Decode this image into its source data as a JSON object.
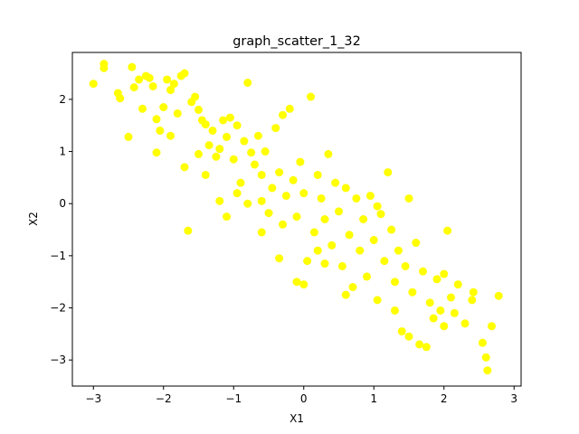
{
  "chart_data": {
    "type": "scatter",
    "title": "graph_scatter_1_32",
    "xlabel": "X1",
    "ylabel": "X2",
    "xlim": [
      -3.3,
      3.1
    ],
    "ylim": [
      -3.5,
      2.9
    ],
    "xticks": [
      -3,
      -2,
      -1,
      0,
      1,
      2,
      3
    ],
    "yticks": [
      -3,
      -2,
      -1,
      0,
      1,
      2
    ],
    "grid": false,
    "legend": "none",
    "marker_color": "#ffff00",
    "series": [
      {
        "points": [
          [
            -3.0,
            2.3
          ],
          [
            -2.85,
            2.6
          ],
          [
            -2.85,
            2.68
          ],
          [
            -2.65,
            2.12
          ],
          [
            -2.62,
            2.02
          ],
          [
            -2.5,
            1.28
          ],
          [
            -2.45,
            2.62
          ],
          [
            -2.42,
            2.23
          ],
          [
            -2.35,
            2.38
          ],
          [
            -2.3,
            1.82
          ],
          [
            -2.25,
            2.45
          ],
          [
            -2.2,
            2.41
          ],
          [
            -2.15,
            2.25
          ],
          [
            -2.1,
            1.62
          ],
          [
            -2.05,
            1.4
          ],
          [
            -2.0,
            1.85
          ],
          [
            -1.95,
            2.38
          ],
          [
            -1.9,
            2.18
          ],
          [
            -1.85,
            2.3
          ],
          [
            -1.8,
            1.73
          ],
          [
            -1.75,
            2.45
          ],
          [
            -1.7,
            2.5
          ],
          [
            -1.65,
            -0.52
          ],
          [
            -1.6,
            1.95
          ],
          [
            -1.55,
            2.05
          ],
          [
            -1.5,
            1.8
          ],
          [
            -1.45,
            1.6
          ],
          [
            -1.4,
            1.52
          ],
          [
            -1.35,
            1.12
          ],
          [
            -1.3,
            1.4
          ],
          [
            -1.25,
            0.9
          ],
          [
            -1.2,
            1.05
          ],
          [
            -1.15,
            1.6
          ],
          [
            -1.1,
            1.28
          ],
          [
            -1.05,
            1.65
          ],
          [
            -1.0,
            0.85
          ],
          [
            -0.95,
            1.5
          ],
          [
            -0.9,
            0.4
          ],
          [
            -0.85,
            1.2
          ],
          [
            -0.8,
            2.32
          ],
          [
            -0.75,
            0.98
          ],
          [
            -0.7,
            0.75
          ],
          [
            -0.65,
            1.3
          ],
          [
            -0.6,
            0.55
          ],
          [
            -0.55,
            1.0
          ],
          [
            -0.5,
            -0.18
          ],
          [
            -0.45,
            0.3
          ],
          [
            -0.4,
            1.45
          ],
          [
            -0.35,
            0.6
          ],
          [
            -0.3,
            1.7
          ],
          [
            -0.25,
            0.15
          ],
          [
            -0.2,
            1.82
          ],
          [
            -0.15,
            0.45
          ],
          [
            -0.1,
            -0.25
          ],
          [
            -0.05,
            0.8
          ],
          [
            0.0,
            0.2
          ],
          [
            0.05,
            -1.1
          ],
          [
            0.1,
            2.05
          ],
          [
            0.15,
            -0.55
          ],
          [
            0.2,
            0.55
          ],
          [
            0.25,
            0.1
          ],
          [
            0.3,
            -0.3
          ],
          [
            0.35,
            0.95
          ],
          [
            0.4,
            -0.8
          ],
          [
            0.45,
            0.4
          ],
          [
            0.5,
            -0.15
          ],
          [
            0.55,
            -1.2
          ],
          [
            0.6,
            0.3
          ],
          [
            0.65,
            -0.6
          ],
          [
            0.7,
            -1.6
          ],
          [
            0.75,
            0.1
          ],
          [
            0.8,
            -0.9
          ],
          [
            0.85,
            -0.3
          ],
          [
            0.9,
            -1.4
          ],
          [
            0.95,
            0.15
          ],
          [
            1.0,
            -0.7
          ],
          [
            1.05,
            -1.85
          ],
          [
            1.1,
            -0.2
          ],
          [
            1.15,
            -1.1
          ],
          [
            1.2,
            0.6
          ],
          [
            1.25,
            -0.5
          ],
          [
            1.3,
            -1.5
          ],
          [
            1.35,
            -0.9
          ],
          [
            1.4,
            -2.45
          ],
          [
            1.45,
            -1.2
          ],
          [
            1.5,
            -2.55
          ],
          [
            1.55,
            -1.7
          ],
          [
            1.6,
            -0.75
          ],
          [
            1.65,
            -2.7
          ],
          [
            1.7,
            -1.3
          ],
          [
            1.75,
            -2.75
          ],
          [
            1.8,
            -1.9
          ],
          [
            1.85,
            -2.2
          ],
          [
            1.9,
            -1.45
          ],
          [
            1.95,
            -2.05
          ],
          [
            2.0,
            -1.35
          ],
          [
            2.05,
            -0.52
          ],
          [
            2.1,
            -1.8
          ],
          [
            2.15,
            -2.1
          ],
          [
            2.2,
            -1.55
          ],
          [
            2.3,
            -2.3
          ],
          [
            2.4,
            -1.85
          ],
          [
            2.42,
            -1.7
          ],
          [
            2.55,
            -2.67
          ],
          [
            2.6,
            -2.95
          ],
          [
            2.62,
            -3.2
          ],
          [
            2.68,
            -2.35
          ],
          [
            2.78,
            -1.77
          ],
          [
            -1.2,
            0.05
          ],
          [
            -1.5,
            0.95
          ],
          [
            -0.95,
            0.2
          ],
          [
            -1.1,
            -0.25
          ],
          [
            -0.6,
            -0.55
          ],
          [
            -0.35,
            -1.05
          ],
          [
            -0.1,
            -1.5
          ],
          [
            0.0,
            -1.55
          ],
          [
            0.3,
            -1.15
          ],
          [
            -2.1,
            0.98
          ],
          [
            -1.7,
            0.7
          ],
          [
            -0.8,
            0.0
          ],
          [
            -0.3,
            -0.4
          ],
          [
            0.6,
            -1.75
          ],
          [
            1.05,
            -0.05
          ],
          [
            1.5,
            0.1
          ],
          [
            -1.4,
            0.55
          ],
          [
            -0.6,
            0.05
          ],
          [
            0.2,
            -0.9
          ],
          [
            1.3,
            -2.05
          ],
          [
            2.0,
            -2.35
          ],
          [
            -1.9,
            1.3
          ]
        ]
      }
    ]
  }
}
